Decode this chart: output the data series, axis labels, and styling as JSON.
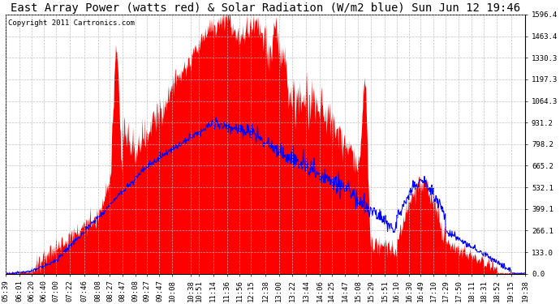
{
  "title": "East Array Power (watts red) & Solar Radiation (W/m2 blue) Sun Jun 12 19:46",
  "copyright_text": "Copyright 2011 Cartronics.com",
  "ylim": [
    0.0,
    1596.4
  ],
  "yticks": [
    0.0,
    133.0,
    266.1,
    399.1,
    532.1,
    665.2,
    798.2,
    931.2,
    1064.3,
    1197.3,
    1330.3,
    1463.4,
    1596.4
  ],
  "background_color": "#ffffff",
  "plot_bg_color": "#ffffff",
  "grid_color": "#bbbbbb",
  "red_color": "#ff0000",
  "blue_color": "#0000ff",
  "x_labels": [
    "05:39",
    "06:01",
    "06:20",
    "06:40",
    "07:00",
    "07:22",
    "07:46",
    "08:08",
    "08:27",
    "08:47",
    "09:08",
    "09:27",
    "09:47",
    "10:08",
    "10:38",
    "10:51",
    "11:14",
    "11:36",
    "11:56",
    "12:15",
    "12:38",
    "13:00",
    "13:22",
    "13:44",
    "14:06",
    "14:25",
    "14:47",
    "15:08",
    "15:29",
    "15:51",
    "16:10",
    "16:30",
    "16:49",
    "17:10",
    "17:29",
    "17:50",
    "18:11",
    "18:31",
    "18:52",
    "19:15",
    "19:38"
  ],
  "title_fontsize": 10,
  "tick_fontsize": 6.5,
  "copyright_fontsize": 6.5
}
